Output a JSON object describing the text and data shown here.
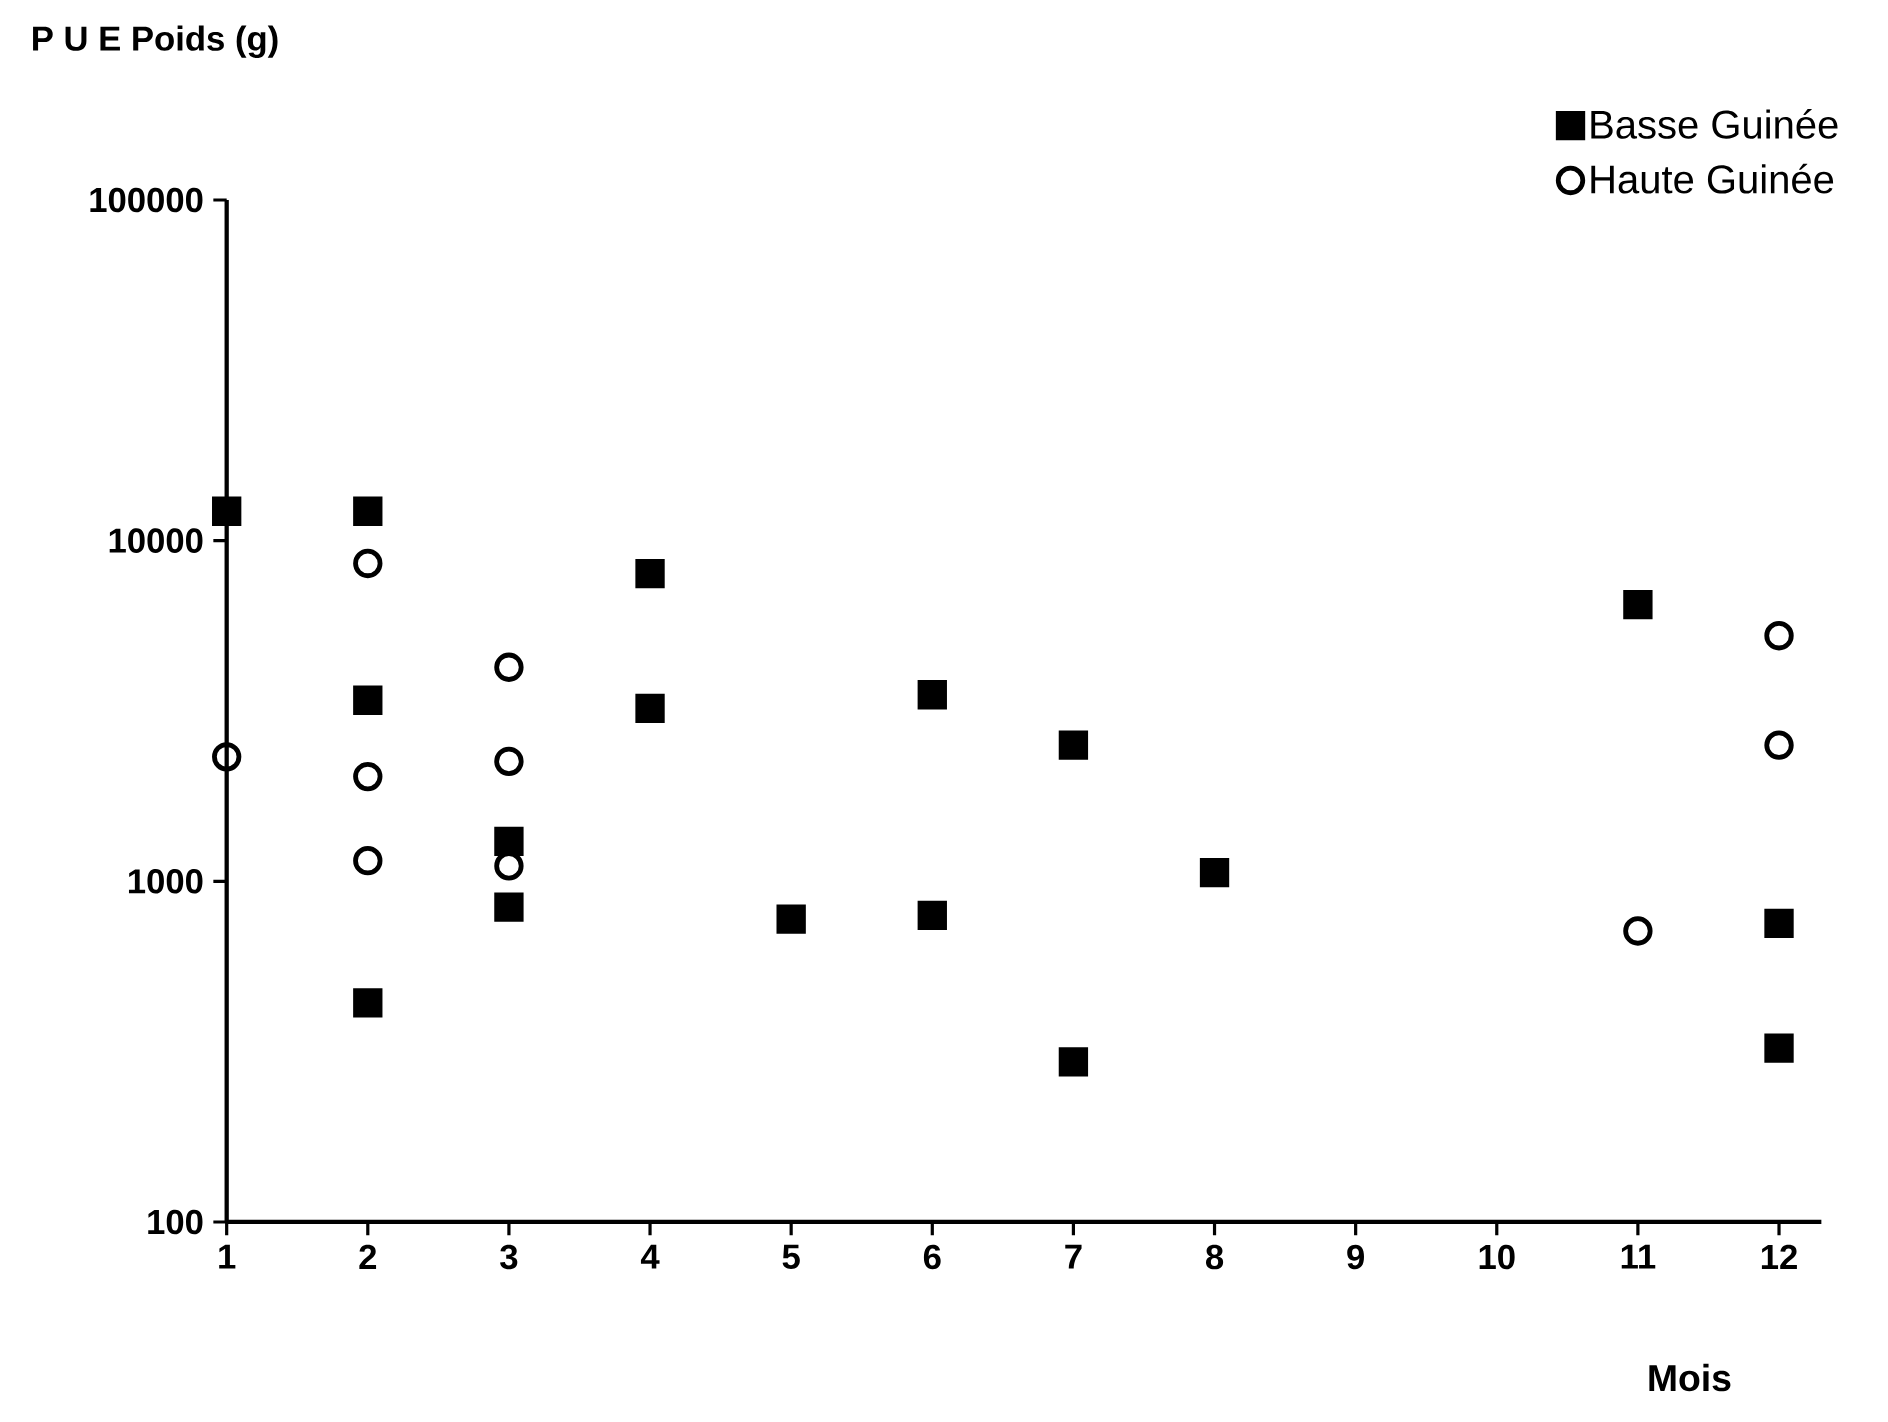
{
  "chart_data": {
    "type": "scatter",
    "ylabel": "P U E    Poids (g)",
    "xlabel": "Mois",
    "log": "y",
    "xlim": [
      1,
      12.3
    ],
    "xticks": [
      1,
      2,
      3,
      4,
      5,
      6,
      7,
      8,
      9,
      10,
      11,
      12
    ],
    "ylim": [
      100,
      100000
    ],
    "yticks": [
      100,
      1000,
      10000,
      100000
    ],
    "grid": false,
    "legend": "top right",
    "series": [
      {
        "name": "Basse Guinée",
        "color": "#000000",
        "marker": "square",
        "x": [
          1,
          2,
          2,
          2,
          3,
          3,
          4,
          4,
          5,
          6,
          6,
          7,
          7,
          8,
          11,
          12,
          12
        ],
        "values": [
          12200,
          12200,
          3400,
          440,
          1310,
          840,
          8000,
          3220,
          775,
          3530,
          795,
          2510,
          295,
          1060,
          6490,
          753,
          324
        ]
      },
      {
        "name": "Haute Guinée",
        "color": "#000000",
        "marker": "circle",
        "x": [
          1,
          2,
          2,
          2,
          3,
          3,
          3,
          11,
          12,
          12
        ],
        "values": [
          2320,
          8570,
          2030,
          1150,
          4250,
          2250,
          1110,
          715,
          5260,
          2510
        ]
      }
    ]
  }
}
